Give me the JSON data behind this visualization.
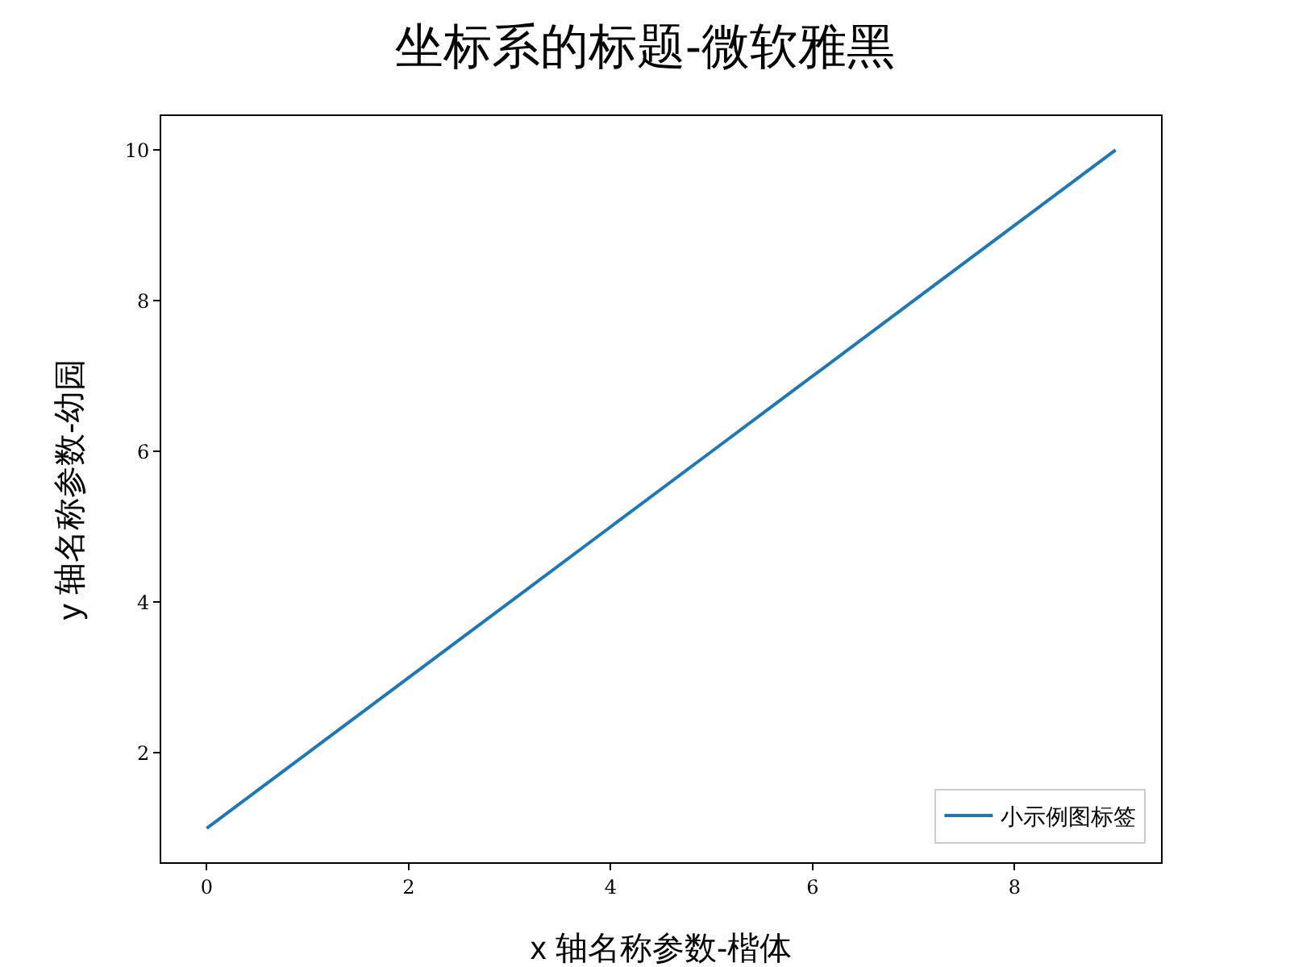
{
  "chart_data": {
    "type": "line",
    "title": "坐标系的标题-微软雅黑",
    "xlabel": "x 轴名称参数-楷体",
    "ylabel": "y 轴名称参数-幼园",
    "x": [
      0,
      1,
      2,
      3,
      4,
      5,
      6,
      7,
      8,
      9
    ],
    "series": [
      {
        "name": "小示例图标签",
        "color": "#1f77b4",
        "values": [
          1,
          2,
          3,
          4,
          5,
          6,
          7,
          8,
          9,
          10
        ]
      }
    ],
    "xlim": [
      -0.45,
      9.45
    ],
    "ylim": [
      0.55,
      10.45
    ],
    "xticks": [
      0,
      2,
      4,
      6,
      8
    ],
    "yticks": [
      2,
      4,
      6,
      8,
      10
    ],
    "grid": false,
    "legend": "bottom right",
    "marker": "none",
    "line_style": "solid"
  }
}
